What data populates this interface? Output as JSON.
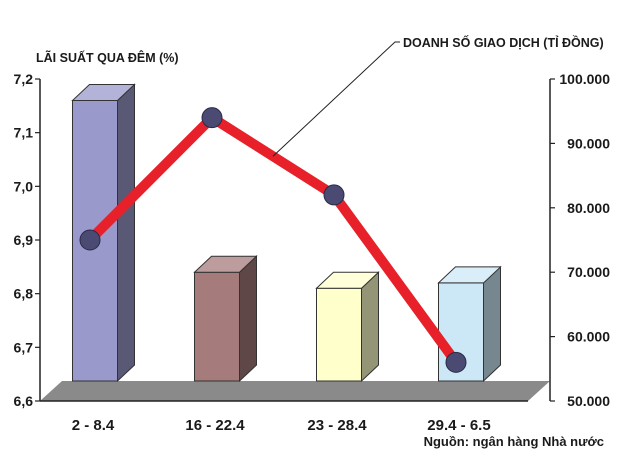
{
  "chart_data": {
    "type": "bar",
    "title": "",
    "categories": [
      "2 - 8.4",
      "16 - 22.4",
      "23 - 28.4",
      "29.4 - 6.5"
    ],
    "series": [
      {
        "name": "LÃI SUẤT QUA ĐÊM (%)",
        "type": "bar",
        "axis": "left",
        "values": [
          7.16,
          6.84,
          6.81,
          6.82
        ],
        "colors": [
          "#9999cc",
          "#a67b7b",
          "#ffffcc",
          "#cce8f7"
        ]
      },
      {
        "name": "DOANH SỐ GIAO DỊCH (TỈ ĐỒNG)",
        "type": "line",
        "axis": "right",
        "values": [
          75000,
          94000,
          82000,
          56000
        ],
        "color": "#e8202a",
        "marker_color": "#4a4a72"
      }
    ],
    "y_left": {
      "label": "LÃI SUẤT QUA ĐÊM (%)",
      "ylim": [
        6.6,
        7.2
      ],
      "ticks": [
        "6,6",
        "6,7",
        "6,8",
        "6,9",
        "7,0",
        "7,1",
        "7,2"
      ]
    },
    "y_right": {
      "label": "DOANH SỐ GIAO DỊCH (TỈ ĐỒNG)",
      "ylim": [
        50000,
        100000
      ],
      "ticks": [
        "50.000",
        "60.000",
        "70.000",
        "80.000",
        "90.000",
        "100.000"
      ]
    },
    "grid": false,
    "legend": "none",
    "source": "Nguồn: ngân hàng Nhà nước"
  }
}
